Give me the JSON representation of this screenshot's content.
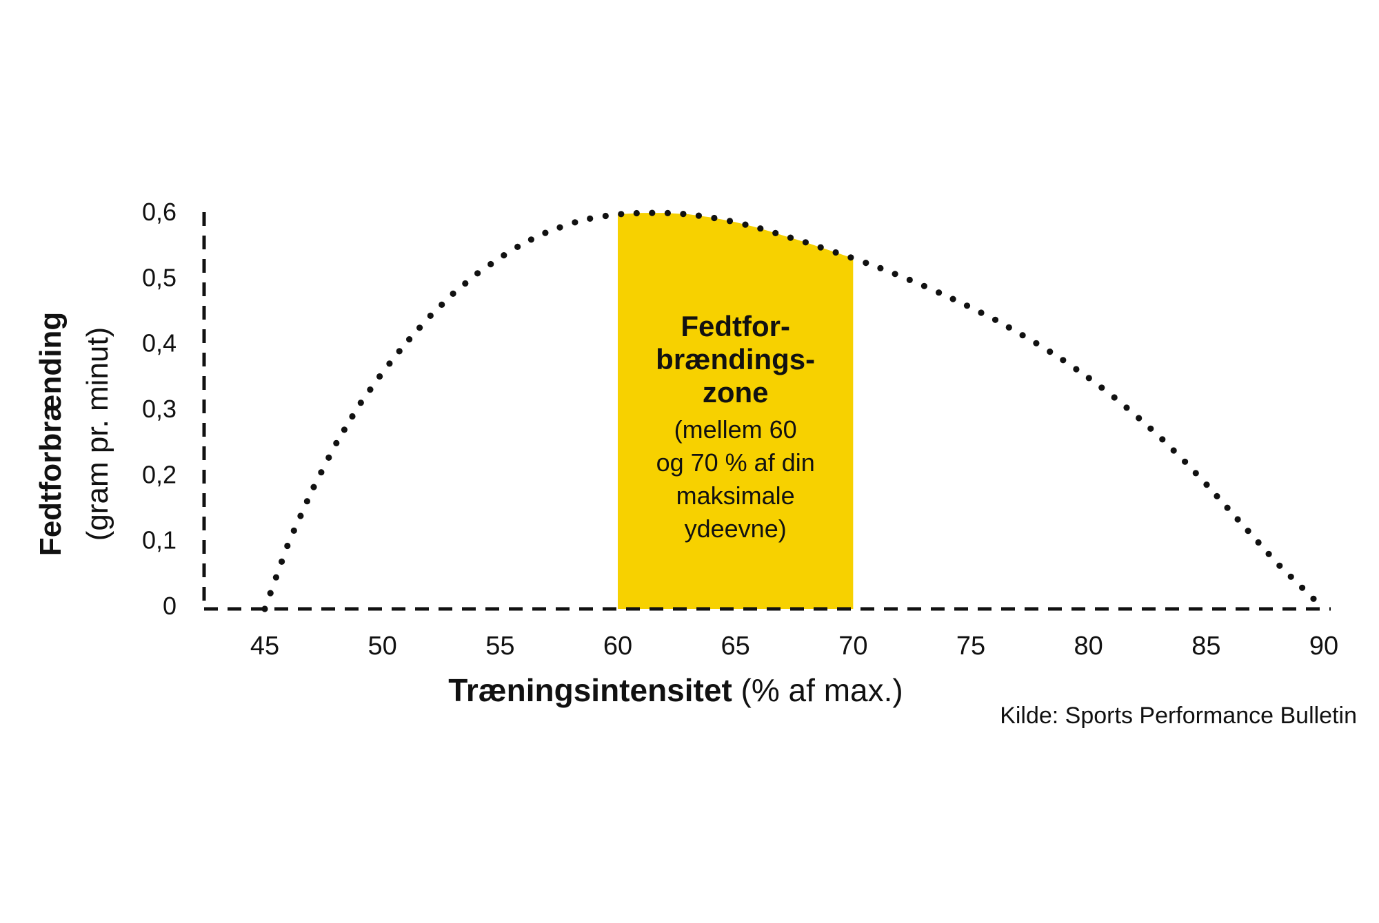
{
  "chart_data": {
    "type": "line",
    "xlabel_bold": "Træningsintensitet",
    "xlabel_rest": " (% af max.)",
    "ylabel_bold": "Fedtforbrænding",
    "ylabel_rest": "(gram pr. minut)",
    "xlim": [
      44,
      90
    ],
    "ylim": [
      0,
      0.6
    ],
    "x_ticks": [
      "45",
      "50",
      "55",
      "60",
      "65",
      "70",
      "75",
      "80",
      "85",
      "90"
    ],
    "y_ticks": [
      "0",
      "0,1",
      "0,2",
      "0,3",
      "0,4",
      "0,5",
      "0,6"
    ],
    "series": [
      {
        "x": [
          45,
          46,
          47,
          48,
          49,
          50,
          51,
          52,
          53,
          54,
          55,
          56,
          57,
          58,
          59,
          60,
          61,
          62,
          63,
          64,
          65,
          66,
          67,
          68,
          69,
          70,
          71,
          72,
          73,
          74,
          75,
          76,
          77,
          78,
          79,
          80,
          81,
          82,
          83,
          84,
          85,
          86,
          87,
          88,
          89,
          90
        ],
        "y": [
          0,
          0.1,
          0.18,
          0.25,
          0.31,
          0.36,
          0.405,
          0.445,
          0.48,
          0.51,
          0.535,
          0.557,
          0.574,
          0.587,
          0.596,
          0.601,
          0.603,
          0.603,
          0.601,
          0.596,
          0.589,
          0.58,
          0.569,
          0.558,
          0.546,
          0.534,
          0.521,
          0.507,
          0.492,
          0.476,
          0.459,
          0.441,
          0.421,
          0.4,
          0.377,
          0.352,
          0.325,
          0.295,
          0.263,
          0.228,
          0.19,
          0.15,
          0.11,
          0.07,
          0.035,
          0
        ]
      }
    ],
    "highlight_zone": {
      "x_start": 60,
      "x_end": 70,
      "color": "#f7d100",
      "title_lines": [
        "Fedtfor-",
        "brændings-",
        "zone"
      ],
      "body_lines": [
        "(mellem 60",
        "og 70 % af din",
        "maksimale",
        "ydeevne)"
      ]
    },
    "source": "Kilde: Sports Performance Bulletin",
    "line_color": "#111111",
    "grid": false
  }
}
